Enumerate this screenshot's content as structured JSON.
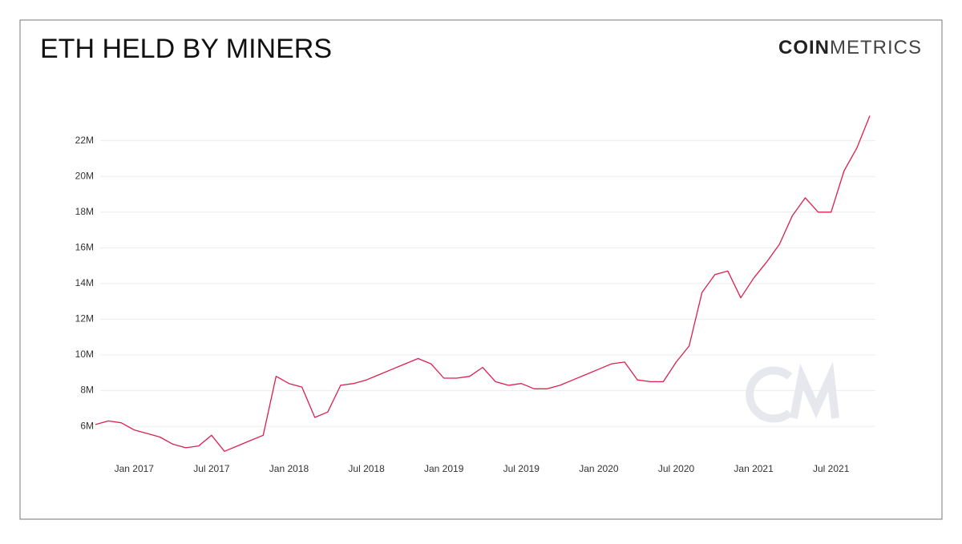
{
  "chart_data": {
    "type": "line",
    "title": "ETH HELD BY MINERS",
    "logo_bold": "COIN",
    "logo_light": "METRICS",
    "x": [
      "2016-10",
      "2016-11",
      "2016-12",
      "2017-01",
      "2017-02",
      "2017-03",
      "2017-04",
      "2017-05",
      "2017-06",
      "2017-07",
      "2017-08",
      "2017-09",
      "2017-10",
      "2017-11",
      "2017-12",
      "2018-01",
      "2018-02",
      "2018-03",
      "2018-04",
      "2018-05",
      "2018-06",
      "2018-07",
      "2018-08",
      "2018-09",
      "2018-10",
      "2018-11",
      "2018-12",
      "2019-01",
      "2019-02",
      "2019-03",
      "2019-04",
      "2019-05",
      "2019-06",
      "2019-07",
      "2019-08",
      "2019-09",
      "2019-10",
      "2019-11",
      "2019-12",
      "2020-01",
      "2020-02",
      "2020-03",
      "2020-04",
      "2020-05",
      "2020-06",
      "2020-07",
      "2020-08",
      "2020-09",
      "2020-10",
      "2020-11",
      "2020-12",
      "2021-01",
      "2021-02",
      "2021-03",
      "2021-04",
      "2021-05",
      "2021-06",
      "2021-07",
      "2021-08",
      "2021-09",
      "2021-10"
    ],
    "series": [
      {
        "name": "ETH held by miners",
        "color": "#dc1f4e",
        "values": [
          6100000,
          6300000,
          6200000,
          5800000,
          5600000,
          5400000,
          5000000,
          4800000,
          4900000,
          5500000,
          4600000,
          4900000,
          5200000,
          5500000,
          8800000,
          8400000,
          8200000,
          6500000,
          6800000,
          8300000,
          8400000,
          8600000,
          8900000,
          9200000,
          9500000,
          9800000,
          9500000,
          8700000,
          8700000,
          8800000,
          9300000,
          8500000,
          8300000,
          8400000,
          8100000,
          8100000,
          8300000,
          8600000,
          8900000,
          9200000,
          9500000,
          9600000,
          8600000,
          8500000,
          8500000,
          9600000,
          10500000,
          13500000,
          14500000,
          14700000,
          13200000,
          14300000,
          15200000,
          16200000,
          17800000,
          18800000,
          18000000,
          18000000,
          20300000,
          21600000,
          23400000
        ]
      }
    ],
    "xlim": [
      "2016-10",
      "2021-10"
    ],
    "xticks": [
      {
        "value": "2017-01",
        "label": "Jan 2017"
      },
      {
        "value": "2017-07",
        "label": "Jul 2017"
      },
      {
        "value": "2018-01",
        "label": "Jan 2018"
      },
      {
        "value": "2018-07",
        "label": "Jul 2018"
      },
      {
        "value": "2019-01",
        "label": "Jan 2019"
      },
      {
        "value": "2019-07",
        "label": "Jul 2019"
      },
      {
        "value": "2020-01",
        "label": "Jan 2020"
      },
      {
        "value": "2020-07",
        "label": "Jul 2020"
      },
      {
        "value": "2021-01",
        "label": "Jan 2021"
      },
      {
        "value": "2021-07",
        "label": "Jul 2021"
      }
    ],
    "ylim": [
      4300000,
      23600000
    ],
    "yticks": [
      {
        "value": 6000000,
        "label": "6M"
      },
      {
        "value": 8000000,
        "label": "8M"
      },
      {
        "value": 10000000,
        "label": "10M"
      },
      {
        "value": 12000000,
        "label": "12M"
      },
      {
        "value": 14000000,
        "label": "14M"
      },
      {
        "value": 16000000,
        "label": "16M"
      },
      {
        "value": 18000000,
        "label": "18M"
      },
      {
        "value": 20000000,
        "label": "20M"
      },
      {
        "value": 22000000,
        "label": "22M"
      }
    ],
    "grid": true
  }
}
